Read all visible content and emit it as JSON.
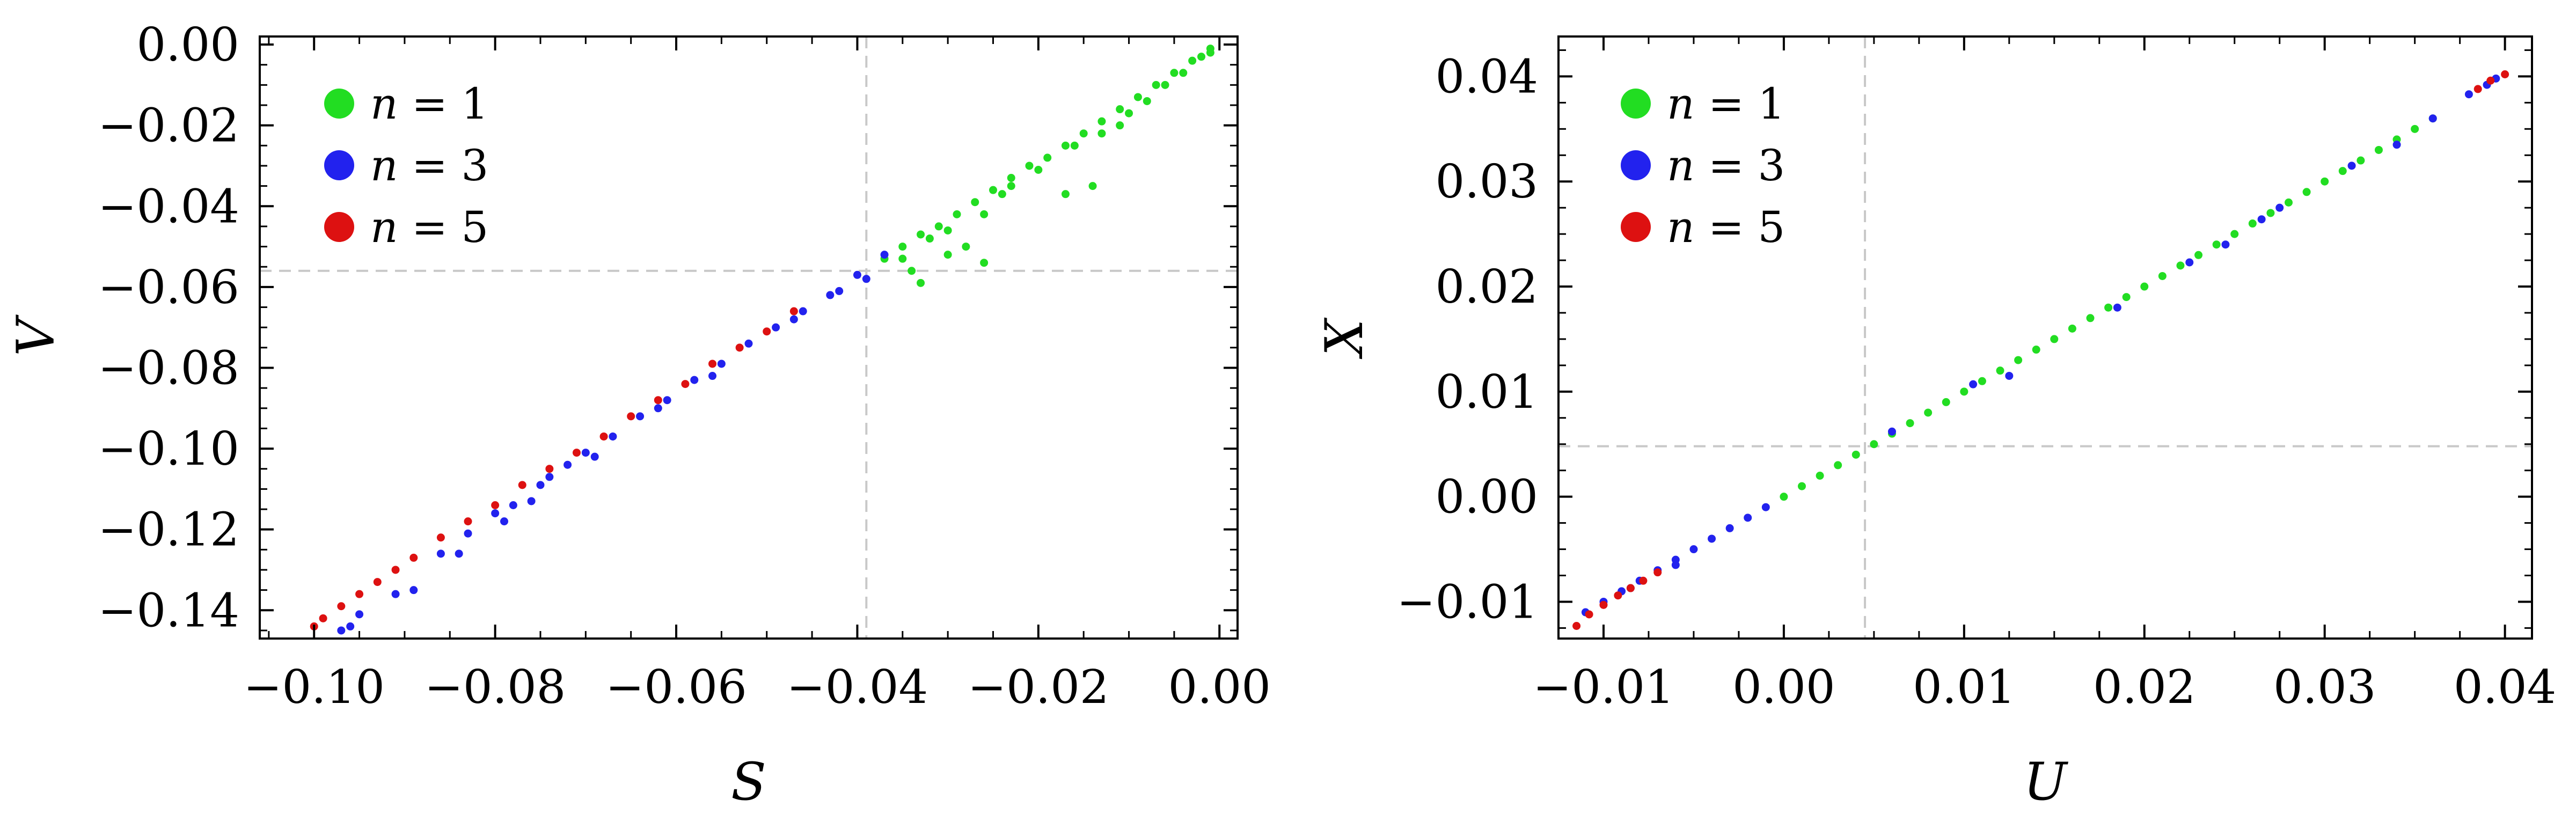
{
  "chart_data": [
    {
      "type": "scatter",
      "title": "",
      "xlabel": "S",
      "ylabel": "V",
      "xlim": [
        -0.106,
        0.002
      ],
      "ylim": [
        -0.147,
        0.002
      ],
      "xticks": [
        -0.1,
        -0.08,
        -0.06,
        -0.04,
        -0.02,
        0.0
      ],
      "xtick_labels": [
        "−0.10",
        "−0.08",
        "−0.06",
        "−0.04",
        "−0.02",
        "0.00"
      ],
      "yticks": [
        0.0,
        -0.02,
        -0.04,
        -0.06,
        -0.08,
        -0.1,
        -0.12,
        -0.14
      ],
      "ytick_labels": [
        "0.00",
        "−0.02",
        "−0.04",
        "−0.06",
        "−0.08",
        "−0.10",
        "−0.12",
        "−0.14"
      ],
      "reference_lines": {
        "x": -0.039,
        "y": -0.056
      },
      "legend_position": "top-left",
      "series": [
        {
          "name": "n = 1",
          "color": "#22dd22",
          "points": [
            [
              -0.001,
              -0.001
            ],
            [
              -0.003,
              -0.004
            ],
            [
              -0.005,
              -0.007
            ],
            [
              -0.007,
              -0.01
            ],
            [
              -0.009,
              -0.013
            ],
            [
              -0.011,
              -0.016
            ],
            [
              -0.013,
              -0.019
            ],
            [
              -0.015,
              -0.022
            ],
            [
              -0.017,
              -0.025
            ],
            [
              -0.019,
              -0.028
            ],
            [
              -0.021,
              -0.03
            ],
            [
              -0.023,
              -0.033
            ],
            [
              -0.025,
              -0.036
            ],
            [
              -0.027,
              -0.039
            ],
            [
              -0.029,
              -0.042
            ],
            [
              -0.031,
              -0.045
            ],
            [
              -0.033,
              -0.047
            ],
            [
              -0.035,
              -0.05
            ],
            [
              -0.037,
              -0.053
            ],
            [
              -0.004,
              -0.007
            ],
            [
              -0.008,
              -0.014
            ],
            [
              -0.01,
              -0.017
            ],
            [
              -0.013,
              -0.022
            ],
            [
              -0.016,
              -0.025
            ],
            [
              -0.02,
              -0.031
            ],
            [
              -0.024,
              -0.037
            ],
            [
              -0.026,
              -0.042
            ],
            [
              -0.03,
              -0.046
            ],
            [
              -0.032,
              -0.048
            ],
            [
              -0.035,
              -0.053
            ],
            [
              -0.034,
              -0.056
            ],
            [
              -0.03,
              -0.052
            ],
            [
              -0.028,
              -0.05
            ],
            [
              -0.026,
              -0.054
            ],
            [
              -0.033,
              -0.059
            ],
            [
              -0.023,
              -0.035
            ],
            [
              -0.017,
              -0.037
            ],
            [
              -0.014,
              -0.035
            ],
            [
              -0.006,
              -0.01
            ],
            [
              -0.002,
              -0.003
            ],
            [
              -0.001,
              -0.002
            ],
            [
              -0.011,
              -0.02
            ]
          ]
        },
        {
          "name": "n = 3",
          "color": "#2222ee",
          "points": [
            [
              -0.037,
              -0.052
            ],
            [
              -0.04,
              -0.057
            ],
            [
              -0.043,
              -0.062
            ],
            [
              -0.046,
              -0.066
            ],
            [
              -0.049,
              -0.07
            ],
            [
              -0.052,
              -0.074
            ],
            [
              -0.055,
              -0.079
            ],
            [
              -0.058,
              -0.083
            ],
            [
              -0.061,
              -0.088
            ],
            [
              -0.064,
              -0.092
            ],
            [
              -0.067,
              -0.097
            ],
            [
              -0.07,
              -0.101
            ],
            [
              -0.072,
              -0.104
            ],
            [
              -0.075,
              -0.109
            ],
            [
              -0.078,
              -0.114
            ],
            [
              -0.08,
              -0.116
            ],
            [
              -0.083,
              -0.121
            ],
            [
              -0.086,
              -0.126
            ],
            [
              -0.089,
              -0.135
            ],
            [
              -0.091,
              -0.136
            ],
            [
              -0.095,
              -0.141
            ],
            [
              -0.096,
              -0.144
            ],
            [
              -0.097,
              -0.145
            ],
            [
              -0.084,
              -0.126
            ],
            [
              -0.074,
              -0.107
            ],
            [
              -0.069,
              -0.102
            ],
            [
              -0.062,
              -0.09
            ],
            [
              -0.056,
              -0.082
            ],
            [
              -0.047,
              -0.068
            ],
            [
              -0.042,
              -0.061
            ],
            [
              -0.039,
              -0.058
            ],
            [
              -0.076,
              -0.113
            ],
            [
              -0.079,
              -0.118
            ]
          ]
        },
        {
          "name": "n = 5",
          "color": "#dd1111",
          "points": [
            [
              -0.047,
              -0.066
            ],
            [
              -0.05,
              -0.071
            ],
            [
              -0.053,
              -0.075
            ],
            [
              -0.056,
              -0.079
            ],
            [
              -0.059,
              -0.084
            ],
            [
              -0.062,
              -0.088
            ],
            [
              -0.065,
              -0.092
            ],
            [
              -0.068,
              -0.097
            ],
            [
              -0.071,
              -0.101
            ],
            [
              -0.074,
              -0.105
            ],
            [
              -0.077,
              -0.109
            ],
            [
              -0.08,
              -0.114
            ],
            [
              -0.083,
              -0.118
            ],
            [
              -0.086,
              -0.122
            ],
            [
              -0.089,
              -0.127
            ],
            [
              -0.091,
              -0.13
            ],
            [
              -0.093,
              -0.133
            ],
            [
              -0.095,
              -0.136
            ],
            [
              -0.097,
              -0.139
            ],
            [
              -0.099,
              -0.142
            ],
            [
              -0.1,
              -0.144
            ]
          ]
        }
      ]
    },
    {
      "type": "scatter",
      "title": "",
      "xlabel": "U",
      "ylabel": "X",
      "xlim": [
        -0.0125,
        0.0415
      ],
      "ylim": [
        -0.0135,
        0.0438
      ],
      "xticks": [
        -0.01,
        0.0,
        0.01,
        0.02,
        0.03,
        0.04
      ],
      "xtick_labels": [
        "−0.01",
        "0.00",
        "0.01",
        "0.02",
        "0.03",
        "0.04"
      ],
      "yticks": [
        0.04,
        0.03,
        0.02,
        0.01,
        0.0,
        -0.01
      ],
      "ytick_labels": [
        "0.04",
        "0.03",
        "0.02",
        "0.01",
        "0.00",
        "−0.01"
      ],
      "reference_lines": {
        "x": 0.0045,
        "y": 0.0048
      },
      "legend_position": "top-left",
      "series": [
        {
          "name": "n = 1",
          "color": "#22dd22",
          "points": [
            [
              0.0,
              0.0
            ],
            [
              0.002,
              0.002
            ],
            [
              0.004,
              0.004
            ],
            [
              0.006,
              0.006
            ],
            [
              0.008,
              0.008
            ],
            [
              0.01,
              0.01
            ],
            [
              0.012,
              0.012
            ],
            [
              0.014,
              0.014
            ],
            [
              0.016,
              0.016
            ],
            [
              0.018,
              0.018
            ],
            [
              0.02,
              0.02
            ],
            [
              0.022,
              0.022
            ],
            [
              0.024,
              0.024
            ],
            [
              0.026,
              0.026
            ],
            [
              0.028,
              0.028
            ],
            [
              0.03,
              0.03
            ],
            [
              0.032,
              0.032
            ],
            [
              0.034,
              0.034
            ],
            [
              0.036,
              0.036
            ],
            [
              0.001,
              0.001
            ],
            [
              0.003,
              0.003
            ],
            [
              0.005,
              0.005
            ],
            [
              0.007,
              0.007
            ],
            [
              0.009,
              0.009
            ],
            [
              0.011,
              0.011
            ],
            [
              0.013,
              0.013
            ],
            [
              0.015,
              0.015
            ],
            [
              0.017,
              0.017
            ],
            [
              0.019,
              0.019
            ],
            [
              0.021,
              0.021
            ],
            [
              0.023,
              0.023
            ],
            [
              0.025,
              0.025
            ],
            [
              0.027,
              0.027
            ],
            [
              0.029,
              0.029
            ],
            [
              0.031,
              0.031
            ],
            [
              0.033,
              0.033
            ],
            [
              0.035,
              0.035
            ]
          ]
        },
        {
          "name": "n = 3",
          "color": "#2222ee",
          "points": [
            [
              -0.011,
              -0.011
            ],
            [
              -0.01,
              -0.01
            ],
            [
              -0.009,
              -0.009
            ],
            [
              -0.008,
              -0.008
            ],
            [
              -0.007,
              -0.007
            ],
            [
              -0.006,
              -0.006
            ],
            [
              -0.005,
              -0.005
            ],
            [
              -0.004,
              -0.004
            ],
            [
              -0.003,
              -0.003
            ],
            [
              -0.002,
              -0.002
            ],
            [
              -0.001,
              -0.001
            ],
            [
              0.006,
              0.0062
            ],
            [
              0.0125,
              0.0115
            ],
            [
              0.0185,
              0.018
            ],
            [
              0.0245,
              0.024
            ],
            [
              0.0275,
              0.0275
            ],
            [
              0.0315,
              0.0315
            ],
            [
              0.034,
              0.0335
            ],
            [
              0.036,
              0.036
            ],
            [
              0.038,
              0.0383
            ],
            [
              0.039,
              0.0392
            ],
            [
              0.0395,
              0.0398
            ],
            [
              0.0105,
              0.0107
            ],
            [
              0.0225,
              0.0223
            ],
            [
              0.0265,
              0.0264
            ],
            [
              -0.0085,
              -0.0087
            ],
            [
              -0.006,
              -0.0065
            ]
          ]
        },
        {
          "name": "n = 5",
          "color": "#dd1111",
          "points": [
            [
              -0.0115,
              -0.0123
            ],
            [
              -0.0108,
              -0.0112
            ],
            [
              -0.01,
              -0.0103
            ],
            [
              -0.0092,
              -0.0094
            ],
            [
              -0.0085,
              -0.0087
            ],
            [
              -0.0078,
              -0.008
            ],
            [
              -0.007,
              -0.0072
            ],
            [
              0.0385,
              0.0388
            ],
            [
              0.0392,
              0.0396
            ],
            [
              0.04,
              0.0402
            ]
          ]
        }
      ]
    }
  ]
}
